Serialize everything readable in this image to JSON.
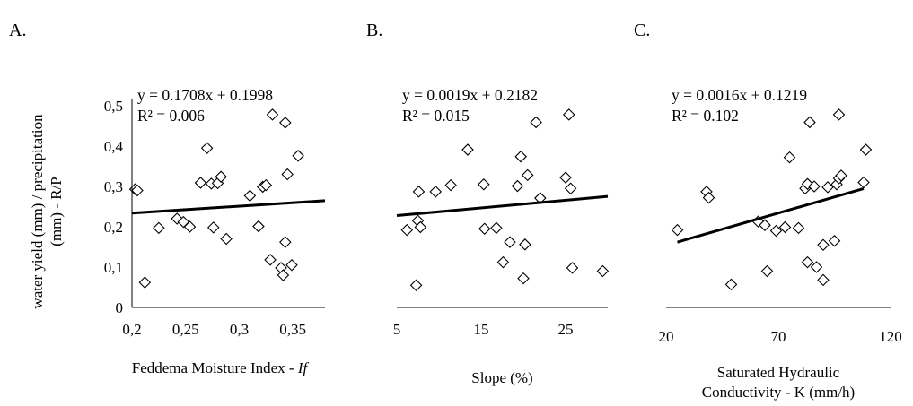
{
  "ylabel_lines": [
    "water yield (mm) / precipitation",
    "(mm) - R/P"
  ],
  "chart_data": [
    {
      "type": "scatter",
      "panel": "A.",
      "xlabel_lines": [
        {
          "parts": [
            {
              "t": "Feddema Moisture Index - "
            },
            {
              "t": "If",
              "italic": true
            }
          ]
        }
      ],
      "xlim": [
        0.2,
        0.38
      ],
      "ylim": [
        0,
        0.5
      ],
      "xticks": [
        "0,2",
        "0,25",
        "0,3",
        "0,35"
      ],
      "xtick_values": [
        0.2,
        0.25,
        0.3,
        0.35
      ],
      "yticks": [
        "0",
        "0,1",
        "0,2",
        "0,3",
        "0,4",
        "0,5"
      ],
      "ytick_values": [
        0,
        0.1,
        0.2,
        0.3,
        0.4,
        0.5
      ],
      "equation": "y = 0.1708x + 0.1998",
      "r2": "R² = 0.006",
      "trend": {
        "slope": 0.1708,
        "intercept": 0.1998
      },
      "points": [
        [
          0.203,
          0.293
        ],
        [
          0.205,
          0.29
        ],
        [
          0.212,
          0.062
        ],
        [
          0.225,
          0.197
        ],
        [
          0.242,
          0.22
        ],
        [
          0.248,
          0.212
        ],
        [
          0.254,
          0.2
        ],
        [
          0.264,
          0.309
        ],
        [
          0.27,
          0.395
        ],
        [
          0.274,
          0.307
        ],
        [
          0.276,
          0.198
        ],
        [
          0.28,
          0.308
        ],
        [
          0.283,
          0.324
        ],
        [
          0.288,
          0.17
        ],
        [
          0.31,
          0.277
        ],
        [
          0.318,
          0.201
        ],
        [
          0.322,
          0.299
        ],
        [
          0.325,
          0.303
        ],
        [
          0.329,
          0.118
        ],
        [
          0.331,
          0.478
        ],
        [
          0.339,
          0.098
        ],
        [
          0.341,
          0.08
        ],
        [
          0.343,
          0.458
        ],
        [
          0.343,
          0.162
        ],
        [
          0.345,
          0.33
        ],
        [
          0.349,
          0.105
        ],
        [
          0.355,
          0.376
        ]
      ]
    },
    {
      "type": "scatter",
      "panel": "B.",
      "xlabel_lines": [
        {
          "parts": [
            {
              "t": "Slope (%)"
            }
          ]
        }
      ],
      "xlim": [
        5,
        30
      ],
      "ylim": [
        0,
        0.5
      ],
      "xticks": [
        "5",
        "15",
        "25"
      ],
      "xtick_values": [
        5,
        15,
        25
      ],
      "equation": "y = 0.0019x + 0.2182",
      "r2": "R² = 0.015",
      "trend": {
        "slope": 0.0019,
        "intercept": 0.2182
      },
      "points": [
        [
          6.2,
          0.192
        ],
        [
          7.3,
          0.055
        ],
        [
          7.5,
          0.215
        ],
        [
          7.6,
          0.287
        ],
        [
          7.8,
          0.199
        ],
        [
          9.6,
          0.287
        ],
        [
          11.4,
          0.303
        ],
        [
          13.4,
          0.391
        ],
        [
          15.3,
          0.305
        ],
        [
          15.4,
          0.195
        ],
        [
          16.8,
          0.197
        ],
        [
          17.6,
          0.112
        ],
        [
          18.4,
          0.162
        ],
        [
          19.3,
          0.301
        ],
        [
          19.7,
          0.374
        ],
        [
          20.0,
          0.072
        ],
        [
          20.2,
          0.156
        ],
        [
          20.5,
          0.328
        ],
        [
          21.5,
          0.459
        ],
        [
          22.0,
          0.271
        ],
        [
          25.0,
          0.322
        ],
        [
          25.4,
          0.478
        ],
        [
          25.6,
          0.295
        ],
        [
          25.8,
          0.098
        ],
        [
          29.4,
          0.09
        ]
      ]
    },
    {
      "type": "scatter",
      "panel": "C.",
      "xlabel_lines": [
        {
          "parts": [
            {
              "t": "Saturated Hydraulic"
            }
          ]
        },
        {
          "parts": [
            {
              "t": "Conductivity - K (mm/h)"
            }
          ]
        }
      ],
      "xlim": [
        20,
        120
      ],
      "ylim": [
        0,
        0.5
      ],
      "xticks": [
        "20",
        "70",
        "120"
      ],
      "xtick_values": [
        20,
        70,
        120
      ],
      "equation": "y = 0.0016x + 0.1219",
      "r2": "R² = 0.102",
      "trend": {
        "slope": 0.0016,
        "intercept": 0.1219,
        "xrange": [
          25,
          108
        ]
      },
      "points": [
        [
          25,
          0.192
        ],
        [
          38,
          0.287
        ],
        [
          39,
          0.272
        ],
        [
          49,
          0.057
        ],
        [
          61,
          0.213
        ],
        [
          64,
          0.204
        ],
        [
          65,
          0.09
        ],
        [
          69,
          0.19
        ],
        [
          73,
          0.199
        ],
        [
          75,
          0.372
        ],
        [
          79,
          0.197
        ],
        [
          82,
          0.295
        ],
        [
          83,
          0.306
        ],
        [
          83,
          0.112
        ],
        [
          84,
          0.459
        ],
        [
          86,
          0.3
        ],
        [
          87,
          0.1
        ],
        [
          90,
          0.068
        ],
        [
          90,
          0.155
        ],
        [
          92,
          0.298
        ],
        [
          95,
          0.165
        ],
        [
          96,
          0.305
        ],
        [
          97,
          0.32
        ],
        [
          97,
          0.478
        ],
        [
          98,
          0.327
        ],
        [
          108,
          0.31
        ],
        [
          109,
          0.391
        ]
      ]
    }
  ]
}
